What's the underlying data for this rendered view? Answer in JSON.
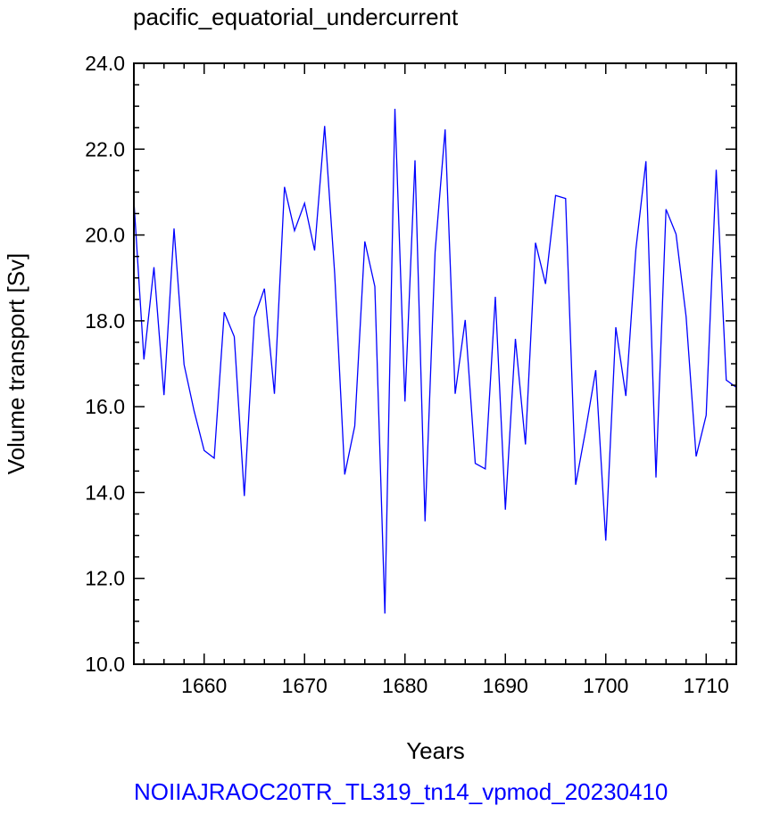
{
  "chart_data": {
    "type": "line",
    "title": "pacific_equatorial_undercurrent",
    "xlabel": "Years",
    "ylabel": "Volume transport [Sv]",
    "footer": "NOIIAJRAOC20TR_TL319_tn14_vpmod_20230410",
    "xlim": [
      1653,
      1713
    ],
    "ylim": [
      10.0,
      24.0
    ],
    "x_major_ticks": [
      1660,
      1670,
      1680,
      1690,
      1700,
      1710
    ],
    "x_tick_labels": [
      "1660",
      "1670",
      "1680",
      "1690",
      "1700",
      "1710"
    ],
    "y_major_ticks": [
      10,
      12,
      14,
      16,
      18,
      20,
      22,
      24
    ],
    "y_tick_labels": [
      "10.0",
      "12.0",
      "14.0",
      "16.0",
      "18.0",
      "20.0",
      "22.0",
      "24.0"
    ],
    "grid": false,
    "series": [
      {
        "color": "#0000ff",
        "x": [
          1653,
          1654,
          1655,
          1656,
          1657,
          1658,
          1659,
          1660,
          1661,
          1662,
          1663,
          1664,
          1665,
          1666,
          1667,
          1668,
          1669,
          1670,
          1671,
          1672,
          1673,
          1674,
          1675,
          1676,
          1677,
          1678,
          1679,
          1680,
          1681,
          1682,
          1683,
          1684,
          1685,
          1686,
          1687,
          1688,
          1689,
          1690,
          1691,
          1692,
          1693,
          1694,
          1695,
          1696,
          1697,
          1698,
          1699,
          1700,
          1701,
          1702,
          1703,
          1704,
          1705,
          1706,
          1707,
          1708,
          1709,
          1710,
          1711,
          1712,
          1713
        ],
        "y": [
          20.8,
          17.1,
          19.25,
          16.27,
          20.15,
          16.98,
          15.9,
          14.98,
          14.8,
          18.2,
          17.63,
          13.92,
          18.08,
          18.75,
          16.3,
          21.12,
          20.1,
          20.74,
          19.64,
          22.54,
          19.1,
          14.42,
          15.55,
          19.85,
          18.8,
          11.18,
          22.94,
          16.12,
          21.74,
          13.33,
          19.6,
          22.46,
          16.3,
          18.02,
          14.68,
          14.55,
          18.56,
          13.6,
          17.58,
          15.12,
          19.82,
          18.86,
          20.92,
          20.85,
          14.18,
          15.46,
          16.85,
          12.88,
          17.85,
          16.25,
          19.67,
          21.72,
          14.35,
          20.6,
          20.02,
          18.1,
          14.84,
          15.8,
          21.52,
          16.62,
          16.45
        ]
      }
    ]
  }
}
